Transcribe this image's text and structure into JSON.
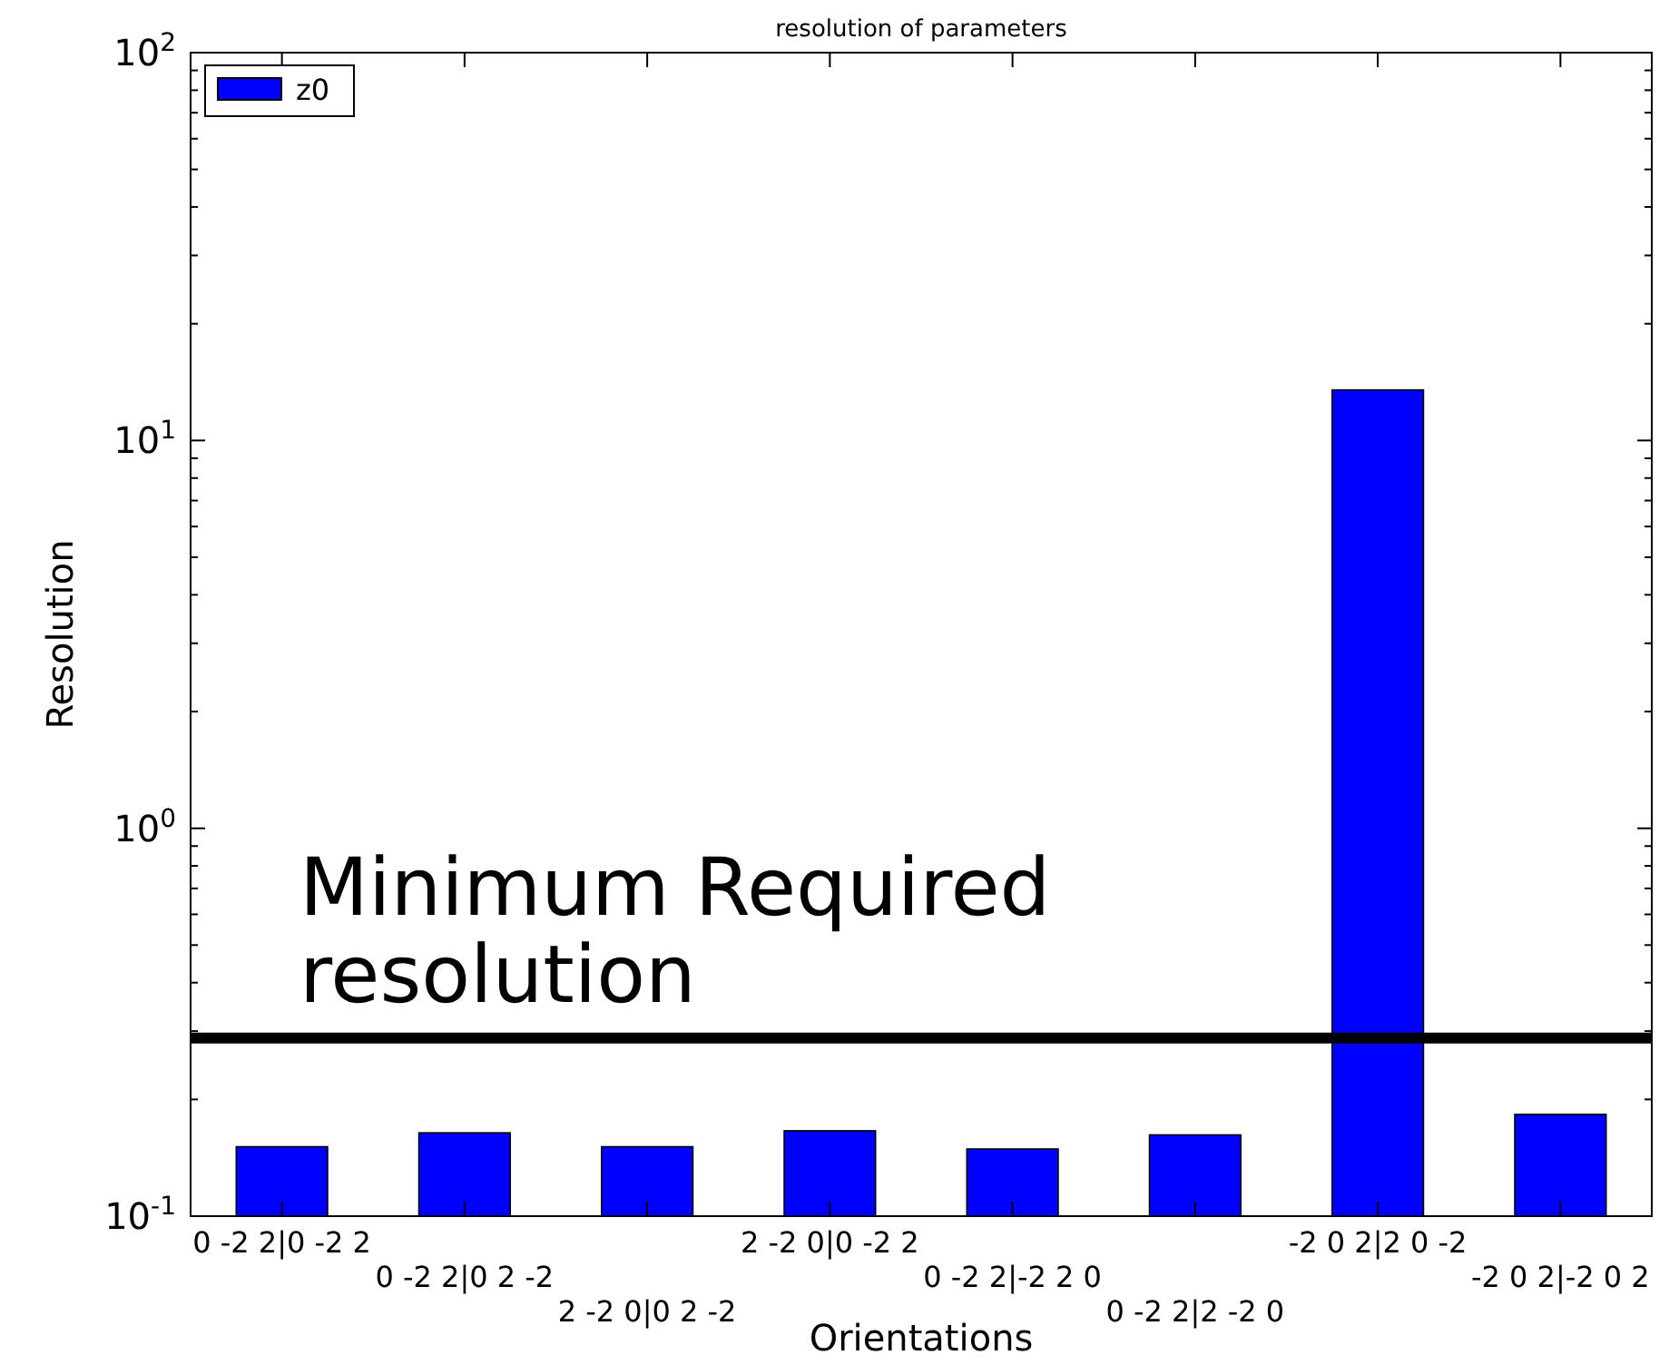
{
  "chart_data": {
    "type": "bar",
    "title": "resolution of parameters",
    "xlabel": "Orientations",
    "ylabel": "Resolution",
    "categories": [
      "0 -2 2|0 -2 2",
      "0 -2 2|0 2 -2",
      "2 -2 0|0 2 -2",
      "2 -2 0|0 -2 2",
      "0 -2 2|-2 2 0",
      "0 -2 2|2 -2 0",
      "-2 0 2|2 0 -2",
      "-2 0 2|-2 0 2"
    ],
    "series": [
      {
        "name": "z0",
        "color": "#0000ff",
        "values": [
          0.151,
          0.164,
          0.151,
          0.166,
          0.149,
          0.162,
          13.5,
          0.183
        ]
      }
    ],
    "log": true,
    "ylim": [
      0.1,
      100
    ],
    "yticks": [
      {
        "value": 0.1,
        "label": "10$^{-1}$"
      },
      {
        "value": 1,
        "label": "10$^{0}$"
      },
      {
        "value": 10,
        "label": "10$^{1}$"
      },
      {
        "value": 100,
        "label": "10$^{2}$"
      }
    ],
    "ref_lines": [
      {
        "axis": "y",
        "value": 0.288,
        "label": "Minimum Required\nresolution",
        "color": "#000000"
      }
    ],
    "legend": "top left",
    "grid": false
  }
}
